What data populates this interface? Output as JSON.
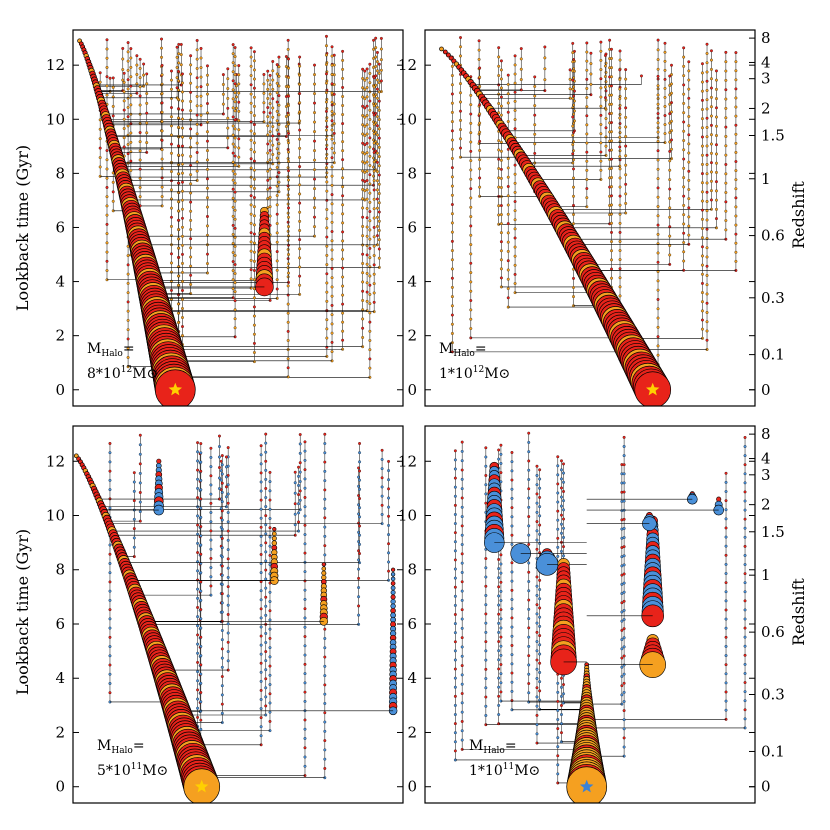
{
  "colors": {
    "main_fill": "#e8231a",
    "young_fill": "#f5a020",
    "blue_fill": "#4a90d9",
    "outline": "#000000",
    "star": "#ffd000",
    "star_blue": "#3b82d6"
  },
  "axes": {
    "left_label": "Lookback time (Gyr)",
    "right_label": "Redshift",
    "y_ticks": [
      "0",
      "2",
      "4",
      "6",
      "8",
      "10",
      "12"
    ],
    "y_tick_values": [
      0,
      2,
      4,
      6,
      8,
      10,
      12
    ],
    "z_ticks": [
      "0",
      "0.1",
      "0.3",
      "0.6",
      "1",
      "1.5",
      "2",
      "3",
      "4",
      "8"
    ],
    "z_tick_values": [
      0,
      0.1,
      0.3,
      0.6,
      1,
      1.5,
      2,
      3,
      4,
      8
    ],
    "ylim": [
      -0.6,
      13.3
    ]
  },
  "chart_data": [
    {
      "type": "scatter",
      "mass_label": "8*10¹²M⊙",
      "mass_prefix": "M",
      "mass_sub": "Halo",
      "mass_eq": "=",
      "mass_value": "8*10",
      "mass_exp": "12",
      "mass_unit": "M⊙",
      "main_branch": {
        "x_start": 0.02,
        "x_end": 0.31,
        "t_start": 12.9,
        "t_end": 0.0,
        "scheme": "red"
      },
      "branches": [
        {
          "x": 0.58,
          "t_start": 6.6,
          "t_end": 3.8,
          "size": 9,
          "scheme": "red"
        }
      ],
      "n_thin_branches": 60
    },
    {
      "type": "scatter",
      "mass_prefix": "M",
      "mass_sub": "Halo",
      "mass_eq": "=",
      "mass_value": "1*10",
      "mass_exp": "12",
      "mass_unit": "M⊙",
      "main_branch": {
        "x_start": 0.05,
        "x_end": 0.69,
        "t_start": 12.6,
        "t_end": 0.0,
        "scheme": "red"
      },
      "branches": [],
      "n_thin_branches": 40
    },
    {
      "type": "scatter",
      "mass_prefix": "M",
      "mass_sub": "Halo",
      "mass_eq": "=",
      "mass_value": "5*10",
      "mass_exp": "11",
      "mass_unit": "M⊙",
      "main_branch": {
        "x_start": 0.01,
        "x_end": 0.39,
        "t_start": 12.2,
        "t_end": 0.0,
        "scheme": "red"
      },
      "branches": [
        {
          "x": 0.26,
          "t_start": 12.0,
          "t_end": 10.2,
          "size": 5,
          "scheme": "blue"
        },
        {
          "x": 0.61,
          "t_start": 9.5,
          "t_end": 7.6,
          "size": 4,
          "scheme": "orange"
        },
        {
          "x": 0.76,
          "t_start": 8.2,
          "t_end": 6.1,
          "size": 4,
          "scheme": "orange"
        },
        {
          "x": 0.97,
          "t_start": 8.0,
          "t_end": 2.8,
          "size": 4,
          "scheme": "blue"
        }
      ],
      "n_thin_branches": 24
    },
    {
      "type": "scatter",
      "mass_prefix": "M",
      "mass_sub": "Halo",
      "mass_eq": "=",
      "mass_value": "1*10",
      "mass_exp": "11",
      "mass_unit": "M⊙",
      "main_branch": {
        "x_start": 0.49,
        "x_end": 0.49,
        "t_start": 4.5,
        "t_end": 0.0,
        "scheme": "orange"
      },
      "branches": [
        {
          "x": 0.21,
          "t_start": 11.8,
          "t_end": 9.0,
          "size": 10,
          "scheme": "blue"
        },
        {
          "x": 0.29,
          "t_start": 8.8,
          "t_end": 8.6,
          "size": 10,
          "scheme": "blue"
        },
        {
          "x": 0.37,
          "t_start": 8.6,
          "t_end": 8.2,
          "size": 11,
          "scheme": "blue"
        },
        {
          "x": 0.42,
          "t_start": 8.2,
          "t_end": 4.6,
          "size": 13,
          "scheme": "red"
        },
        {
          "x": 0.69,
          "t_start": 9.8,
          "t_end": 6.3,
          "size": 11,
          "scheme": "blue"
        },
        {
          "x": 0.68,
          "t_start": 10.0,
          "t_end": 9.7,
          "size": 7,
          "scheme": "blue"
        },
        {
          "x": 0.69,
          "t_start": 5.4,
          "t_end": 4.5,
          "size": 13,
          "scheme": "red"
        },
        {
          "x": 0.81,
          "t_start": 10.8,
          "t_end": 10.6,
          "size": 5,
          "scheme": "blue"
        },
        {
          "x": 0.89,
          "t_start": 10.6,
          "t_end": 10.2,
          "size": 5,
          "scheme": "blue"
        }
      ],
      "n_thin_branches": 16
    }
  ]
}
